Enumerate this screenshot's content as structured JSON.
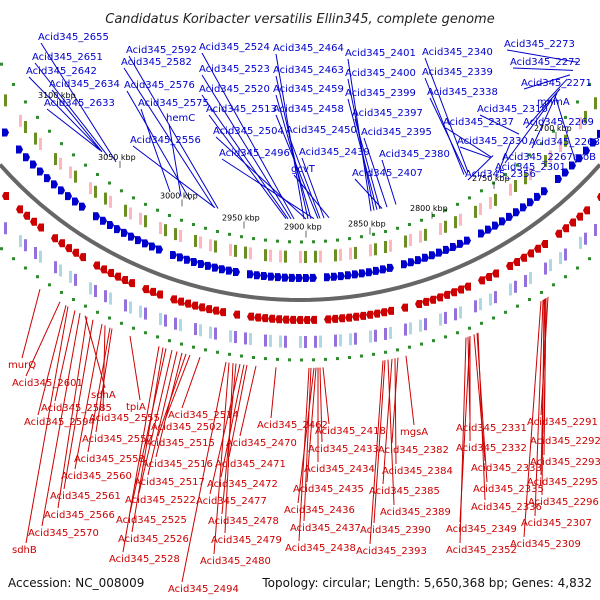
{
  "title": "Candidatus Koribacter versatilis Ellin345, complete genome",
  "accession": "Accession: NC_008009",
  "topology": "Topology: circular; Length: 5,650,368 bp; Genes: 4,832",
  "colors": {
    "forward": "#0000cc",
    "reverse": "#cc0000",
    "backbone": "#666666",
    "tick": "#2e8b2e"
  },
  "kbp_ticks": [
    "3100 kbp",
    "3050 kbp",
    "3000 kbp",
    "2950 kbp",
    "2900 kbp",
    "2850 kbp",
    "2800 kbp",
    "2750 kbp",
    "2700 kbp"
  ],
  "top_labels": [
    "Acid345_2655",
    "Acid345_2651",
    "Acid345_2642",
    "Acid345_2634",
    "Acid345_2633",
    "Acid345_2592",
    "Acid345_2582",
    "Acid345_2576",
    "Acid345_2575",
    "hemC",
    "Acid345_2556",
    "Acid345_2524",
    "Acid345_2523",
    "Acid345_2520",
    "Acid345_2513",
    "Acid345_2504",
    "Acid345_2496",
    "Acid345_2464",
    "Acid345_2463",
    "Acid345_2459",
    "Acid345_2458",
    "Acid345_2450",
    "Acid345_2439",
    "gcvT",
    "Acid345_2401",
    "Acid345_2400",
    "Acid345_2399",
    "Acid345_2397",
    "Acid345_2395",
    "Acid345_2380",
    "Acid345_2407",
    "Acid345_2340",
    "Acid345_2339",
    "Acid345_2338",
    "Acid345_2337",
    "Acid345_2330",
    "Acid345_2356",
    "Acid345_2310",
    "Acid345_2301",
    "Acid345_2273",
    "Acid345_2272",
    "Acid345_2271",
    "mnmA",
    "Acid345_2269",
    "Acid345_2268",
    "Acid345_2267",
    "aroB"
  ],
  "bottom_labels": [
    "murQ",
    "Acid345_2601",
    "sdhA",
    "Acid345_2585",
    "Acid345_2594",
    "tpiA",
    "Acid345_2555",
    "Acid345_2557",
    "Acid345_2558",
    "Acid345_2560",
    "Acid345_2561",
    "Acid345_2566",
    "Acid345_2570",
    "sdhB",
    "Acid345_2514",
    "Acid345_2502",
    "Acid345_2515",
    "Acid345_2516",
    "Acid345_2517",
    "Acid345_2522",
    "Acid345_2525",
    "Acid345_2526",
    "Acid345_2528",
    "Acid345_2462",
    "Acid345_2470",
    "Acid345_2471",
    "Acid345_2472",
    "Acid345_2477",
    "Acid345_2478",
    "Acid345_2479",
    "Acid345_2480",
    "Acid345_2494",
    "Acid345_2418",
    "Acid345_2433",
    "Acid345_2434",
    "Acid345_2435",
    "Acid345_2436",
    "Acid345_2437",
    "Acid345_2438",
    "mgsA",
    "Acid345_2382",
    "Acid345_2384",
    "Acid345_2385",
    "Acid345_2389",
    "Acid345_2390",
    "Acid345_2393",
    "Acid345_2331",
    "Acid345_2332",
    "Acid345_2333",
    "Acid345_2335",
    "Acid345_2336",
    "Acid345_2349",
    "Acid345_2352",
    "Acid345_2291",
    "Acid345_2292",
    "Acid345_2293",
    "Acid345_2295",
    "Acid345_2296",
    "Acid345_2307",
    "Acid345_2309"
  ]
}
